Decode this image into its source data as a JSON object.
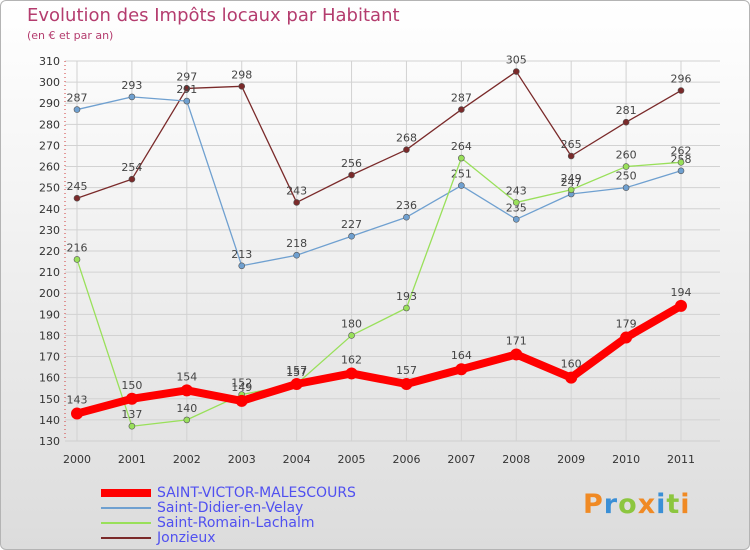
{
  "title": "Evolution des Impôts locaux par Habitant",
  "subtitle": "(en € et par an)",
  "logo": "Proxiti",
  "chart_data": {
    "type": "line",
    "title": "Evolution des Impôts locaux par Habitant",
    "subtitle": "(en € et par an)",
    "x": [
      "2000",
      "2001",
      "2002",
      "2003",
      "2004",
      "2005",
      "2006",
      "2007",
      "2008",
      "2009",
      "2010",
      "2011"
    ],
    "ylim": [
      130,
      310
    ],
    "yticks": [
      130,
      140,
      150,
      160,
      170,
      180,
      190,
      200,
      210,
      220,
      230,
      240,
      250,
      260,
      270,
      280,
      290,
      300,
      310
    ],
    "grid": true,
    "legend_position": "bottom-left",
    "series": [
      {
        "name": "SAINT-VICTOR-MALESCOURS",
        "color": "#ff0000",
        "values": [
          143,
          150,
          154,
          149,
          157,
          162,
          157,
          164,
          171,
          160,
          179,
          194
        ]
      },
      {
        "name": "Saint-Didier-en-Velay",
        "color": "#6fa0d0",
        "values": [
          287,
          293,
          291,
          213,
          218,
          227,
          236,
          251,
          235,
          247,
          250,
          258
        ]
      },
      {
        "name": "Saint-Romain-Lachalm",
        "color": "#99e05a",
        "values": [
          216,
          137,
          140,
          152,
          157,
          180,
          193,
          264,
          243,
          249,
          260,
          262
        ]
      },
      {
        "name": "Jonzieux",
        "color": "#7a2a2a",
        "values": [
          245,
          254,
          297,
          298,
          243,
          256,
          268,
          287,
          305,
          265,
          281,
          296
        ]
      }
    ]
  }
}
